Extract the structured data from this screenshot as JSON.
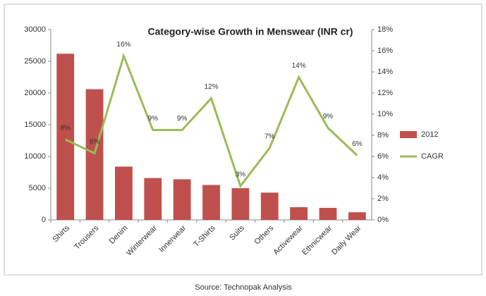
{
  "chart_data": {
    "type": "bar-line",
    "title": "Category-wise Growth in Menswear (INR cr)",
    "source": "Source: Technopak Analysis",
    "categories": [
      "Shirts",
      "Trousers",
      "Denim",
      "Winterwear",
      "Innerwear",
      "T-Shirts",
      "Suits",
      "Others",
      "Activewear",
      "Ethnicwear",
      "Daily Wear"
    ],
    "series": [
      {
        "name": "2012",
        "type": "bar",
        "color": "#c0504d",
        "values": [
          26200,
          20600,
          8400,
          6600,
          6400,
          5500,
          5000,
          4300,
          2000,
          1900,
          1200
        ]
      },
      {
        "name": "CAGR",
        "type": "line",
        "axis": "y2",
        "color": "#9bbb59",
        "values": [
          7.6,
          6.3,
          15.5,
          8.5,
          8.5,
          11.5,
          3.2,
          6.8,
          13.5,
          8.7,
          6.1
        ],
        "value_labels": [
          "8%",
          "6%",
          "16%",
          "9%",
          "9%",
          "12%",
          "3%",
          "7%",
          "14%",
          "9%",
          "6%"
        ]
      }
    ],
    "ylim": [
      0,
      30000
    ],
    "yticks": [
      0,
      5000,
      10000,
      15000,
      20000,
      25000,
      30000
    ],
    "y2lim": [
      0,
      18
    ],
    "y2ticks": [
      {
        "value": 0,
        "label": "0%"
      },
      {
        "value": 2,
        "label": "2%"
      },
      {
        "value": 4,
        "label": "4%"
      },
      {
        "value": 6,
        "label": "6%"
      },
      {
        "value": 8,
        "label": "8%"
      },
      {
        "value": 10,
        "label": "10%"
      },
      {
        "value": 12,
        "label": "12%"
      },
      {
        "value": 14,
        "label": "14%"
      },
      {
        "value": 16,
        "label": "16%"
      },
      {
        "value": 18,
        "label": "18%"
      }
    ],
    "legend": "right"
  }
}
